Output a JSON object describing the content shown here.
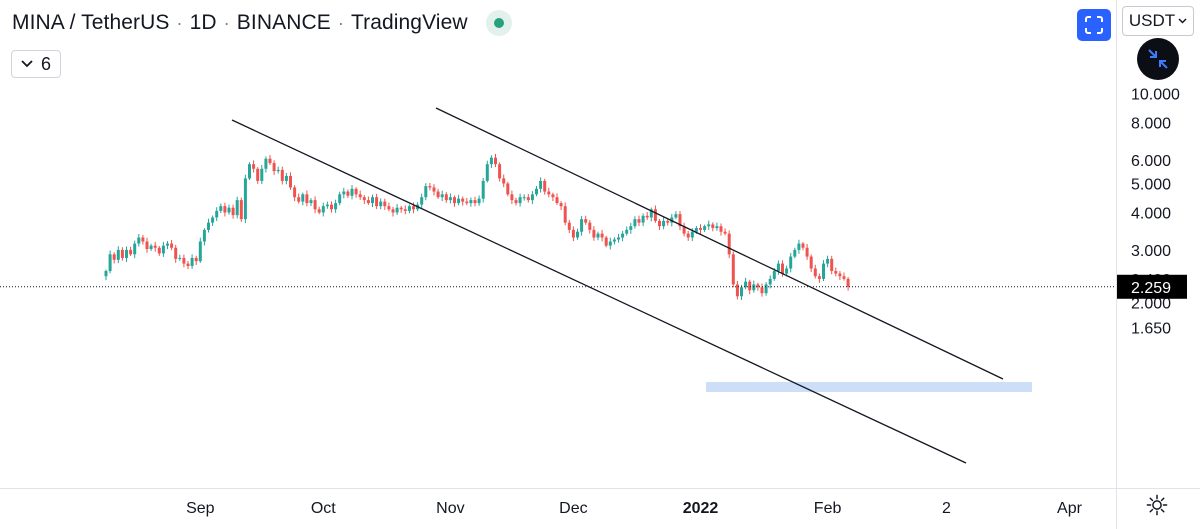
{
  "header": {
    "symbol": "MINA / TetherUS",
    "interval": "1D",
    "exchange": "BINANCE",
    "platform": "TradingView",
    "status_icon": "market-status-dot"
  },
  "indicators_button": {
    "count": "6",
    "icon": "chevron-down-icon"
  },
  "toolbar": {
    "currency": "USDT",
    "fullscreen_icon": "fullscreen-icon",
    "minimize_icon": "minimize-arrows-icon",
    "settings_icon": "gear-icon"
  },
  "colors": {
    "up": "#26a69a",
    "down": "#ef5350",
    "accent": "#2962ff",
    "price_label_bg": "#000000",
    "support_zone": "#bbd3f5"
  },
  "chart_data": {
    "type": "candlestick",
    "title": "",
    "y_scale": "log",
    "y_ticks": [
      "1.650",
      "2.000",
      "2.400",
      "3.000",
      "4.000",
      "5.000",
      "6.000",
      "8.000",
      "10.000"
    ],
    "y_range": [
      1.5,
      10.3
    ],
    "x_ticks": [
      {
        "label": "Sep",
        "date": "2021-09-01"
      },
      {
        "label": "Oct",
        "date": "2021-10-01"
      },
      {
        "label": "Nov",
        "date": "2021-11-01"
      },
      {
        "label": "Dec",
        "date": "2021-12-01"
      },
      {
        "label": "2022",
        "date": "2022-01-01",
        "bold": true
      },
      {
        "label": "Feb",
        "date": "2022-02-01"
      },
      {
        "label": "2",
        "date": "2022-03-02"
      },
      {
        "label": "Apr",
        "date": "2022-04-01"
      }
    ],
    "last_price": "2.259",
    "first_date": "2021-08-09",
    "closes": [
      2.55,
      2.9,
      2.78,
      3.0,
      2.82,
      3.0,
      2.9,
      3.15,
      3.3,
      3.2,
      3.02,
      3.1,
      3.05,
      2.92,
      3.1,
      3.15,
      3.05,
      2.8,
      2.82,
      2.7,
      2.65,
      2.82,
      2.75,
      3.2,
      3.5,
      3.7,
      3.85,
      4.05,
      4.2,
      4.0,
      4.15,
      3.92,
      4.4,
      3.8,
      5.2,
      5.8,
      5.6,
      5.1,
      5.6,
      6.05,
      5.85,
      5.5,
      5.55,
      5.1,
      5.3,
      4.85,
      4.5,
      4.35,
      4.6,
      4.3,
      4.4,
      4.1,
      4.0,
      4.2,
      4.25,
      4.1,
      4.3,
      4.6,
      4.7,
      4.55,
      4.8,
      4.6,
      4.5,
      4.4,
      4.3,
      4.5,
      4.2,
      4.35,
      4.2,
      4.1,
      4.0,
      4.15,
      4.1,
      4.05,
      4.2,
      4.1,
      4.25,
      4.5,
      4.9,
      4.85,
      4.7,
      4.5,
      4.6,
      4.4,
      4.5,
      4.3,
      4.45,
      4.35,
      4.3,
      4.4,
      4.3,
      4.45,
      5.1,
      5.8,
      6.1,
      5.8,
      5.2,
      5.0,
      4.6,
      4.4,
      4.3,
      4.5,
      4.5,
      4.4,
      4.6,
      4.8,
      5.1,
      4.7,
      4.6,
      4.5,
      4.3,
      4.2,
      3.7,
      3.5,
      3.3,
      3.45,
      3.8,
      3.7,
      3.5,
      3.3,
      3.4,
      3.3,
      3.1,
      3.2,
      3.25,
      3.3,
      3.4,
      3.5,
      3.6,
      3.8,
      3.7,
      3.9,
      3.85,
      4.1,
      3.75,
      3.6,
      3.75,
      3.7,
      3.85,
      3.95,
      3.6,
      3.4,
      3.3,
      3.45,
      3.55,
      3.5,
      3.6,
      3.65,
      3.55,
      3.6,
      3.45,
      3.4,
      2.9,
      2.3,
      2.1,
      2.25,
      2.35,
      2.2,
      2.3,
      2.25,
      2.15,
      2.3,
      2.4,
      2.55,
      2.7,
      2.5,
      2.6,
      2.85,
      3.0,
      3.15,
      3.05,
      2.85,
      2.6,
      2.45,
      2.4,
      2.7,
      2.8,
      2.55,
      2.5,
      2.45,
      2.4,
      2.259
    ]
  }
}
